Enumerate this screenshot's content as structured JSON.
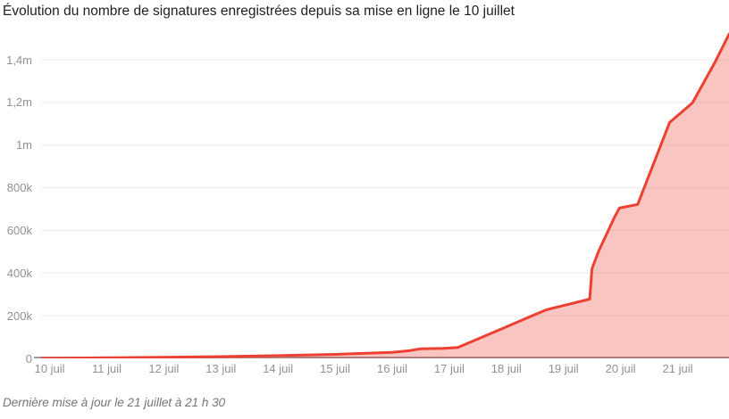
{
  "title": "Évolution du nombre de signatures enregistrées depuis sa mise en ligne le 10 juillet",
  "footer_note": "Dernière mise à jour le 21 juillet à 21 h 30",
  "colors": {
    "line": "#ec4033",
    "fill": "rgba(236,64,49,0.30)",
    "grid": "#ececec",
    "axis_line": "#9b9b9b",
    "tick_text": "#919191",
    "title_text": "#212121",
    "footer_text": "#757575",
    "background": "#ffffff"
  },
  "chart_data": {
    "type": "area",
    "title": "Évolution du nombre de signatures enregistrées depuis sa mise en ligne le 10 juillet",
    "xlabel": "",
    "ylabel": "",
    "grid": "horizontal",
    "legend": "none",
    "xlim": [
      9.85,
      21.9
    ],
    "ylim": [
      0,
      1530000
    ],
    "x_ticks": [
      {
        "label": "10 juil",
        "day": 10
      },
      {
        "label": "11 juil",
        "day": 11
      },
      {
        "label": "12 juil",
        "day": 12
      },
      {
        "label": "13 juil",
        "day": 13
      },
      {
        "label": "14 juil",
        "day": 14
      },
      {
        "label": "15 juil",
        "day": 15
      },
      {
        "label": "16 juil",
        "day": 16
      },
      {
        "label": "17 juil",
        "day": 17
      },
      {
        "label": "18 juil",
        "day": 18
      },
      {
        "label": "19 juil",
        "day": 19
      },
      {
        "label": "20 juil",
        "day": 20
      },
      {
        "label": "21 juil",
        "day": 21
      }
    ],
    "y_ticks": [
      {
        "label": "0",
        "value": 0
      },
      {
        "label": "200k",
        "value": 200000
      },
      {
        "label": "400k",
        "value": 400000
      },
      {
        "label": "600k",
        "value": 600000
      },
      {
        "label": "800k",
        "value": 800000
      },
      {
        "label": "1m",
        "value": 1000000
      },
      {
        "label": "1,2m",
        "value": 1200000
      },
      {
        "label": "1,4m",
        "value": 1400000
      }
    ],
    "series": [
      {
        "name": "signatures",
        "points": [
          [
            9.85,
            0
          ],
          [
            10.5,
            1500
          ],
          [
            11.0,
            3000
          ],
          [
            12.0,
            5500
          ],
          [
            13.0,
            8500
          ],
          [
            14.0,
            13000
          ],
          [
            15.0,
            19000
          ],
          [
            16.0,
            28000
          ],
          [
            16.3,
            36000
          ],
          [
            16.5,
            45000
          ],
          [
            16.9,
            47000
          ],
          [
            17.15,
            51000
          ],
          [
            18.0,
            148000
          ],
          [
            18.45,
            200000
          ],
          [
            18.7,
            228000
          ],
          [
            19.0,
            248000
          ],
          [
            19.46,
            278000
          ],
          [
            19.5,
            420000
          ],
          [
            19.62,
            505000
          ],
          [
            19.9,
            665000
          ],
          [
            19.98,
            705000
          ],
          [
            20.3,
            722000
          ],
          [
            20.86,
            1106000
          ],
          [
            21.26,
            1198000
          ],
          [
            21.65,
            1386000
          ],
          [
            21.9,
            1520000
          ]
        ]
      }
    ]
  }
}
